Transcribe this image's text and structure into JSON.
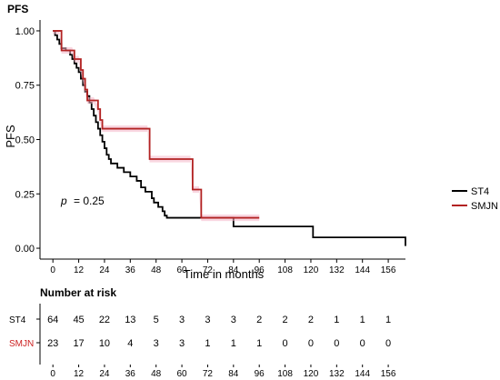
{
  "chart_data": {
    "type": "line",
    "subtype": "kaplan-meier",
    "title": "PFS",
    "xlabel": "Time in months",
    "ylabel": "PFS",
    "xlim": [
      -6,
      164
    ],
    "ylim": [
      -0.05,
      1.05
    ],
    "xticks": [
      0,
      12,
      24,
      36,
      48,
      60,
      72,
      84,
      96,
      108,
      120,
      132,
      144,
      156
    ],
    "yticks": [
      "0.00",
      "0.25",
      "0.50",
      "0.75",
      "1.00"
    ],
    "annotation": {
      "p_symbol": "p",
      "p_value": "= 0.25"
    },
    "legend_position": "right",
    "grid": false,
    "series": [
      {
        "name": "ST4",
        "color": "#000000",
        "points": [
          [
            0,
            1.0
          ],
          [
            1,
            0.98
          ],
          [
            2,
            0.96
          ],
          [
            3,
            0.94
          ],
          [
            4,
            0.92
          ],
          [
            6,
            0.91
          ],
          [
            8,
            0.89
          ],
          [
            9,
            0.87
          ],
          [
            10,
            0.85
          ],
          [
            11,
            0.83
          ],
          [
            12,
            0.81
          ],
          [
            13,
            0.78
          ],
          [
            14,
            0.75
          ],
          [
            15,
            0.72
          ],
          [
            16,
            0.7
          ],
          [
            17,
            0.67
          ],
          [
            18,
            0.64
          ],
          [
            19,
            0.61
          ],
          [
            20,
            0.58
          ],
          [
            21,
            0.55
          ],
          [
            22,
            0.52
          ],
          [
            23,
            0.49
          ],
          [
            24,
            0.46
          ],
          [
            25,
            0.43
          ],
          [
            26,
            0.41
          ],
          [
            27,
            0.39
          ],
          [
            30,
            0.37
          ],
          [
            33,
            0.35
          ],
          [
            36,
            0.33
          ],
          [
            39,
            0.31
          ],
          [
            41,
            0.28
          ],
          [
            43,
            0.26
          ],
          [
            46,
            0.23
          ],
          [
            47,
            0.21
          ],
          [
            49,
            0.19
          ],
          [
            51,
            0.17
          ],
          [
            52,
            0.15
          ],
          [
            53,
            0.14
          ],
          [
            70,
            0.14
          ],
          [
            84,
            0.1
          ],
          [
            120,
            0.1
          ],
          [
            121,
            0.05
          ],
          [
            163,
            0.05
          ],
          [
            164,
            0.01
          ]
        ],
        "band": false
      },
      {
        "name": "SMJN",
        "color": "#b22222",
        "points": [
          [
            0,
            1.0
          ],
          [
            3,
            1.0
          ],
          [
            4,
            0.91
          ],
          [
            9,
            0.91
          ],
          [
            10,
            0.87
          ],
          [
            12,
            0.87
          ],
          [
            13,
            0.82
          ],
          [
            14,
            0.78
          ],
          [
            15,
            0.73
          ],
          [
            16,
            0.68
          ],
          [
            19,
            0.68
          ],
          [
            21,
            0.64
          ],
          [
            22,
            0.59
          ],
          [
            23,
            0.55
          ],
          [
            44,
            0.55
          ],
          [
            45,
            0.41
          ],
          [
            64,
            0.41
          ],
          [
            65,
            0.27
          ],
          [
            68,
            0.27
          ],
          [
            69,
            0.14
          ],
          [
            96,
            0.14
          ]
        ],
        "band": true
      }
    ]
  },
  "risk_table": {
    "title": "Number at risk",
    "rows": [
      {
        "label": "ST4",
        "color": "#000000",
        "values": [
          "64",
          "45",
          "22",
          "13",
          "5",
          "3",
          "3",
          "3",
          "2",
          "2",
          "2",
          "1",
          "1",
          "1"
        ]
      },
      {
        "label": "SMJN",
        "color": "#cc2222",
        "values": [
          "23",
          "17",
          "10",
          "4",
          "3",
          "3",
          "1",
          "1",
          "1",
          "0",
          "0",
          "0",
          "0",
          "0"
        ]
      }
    ],
    "xticks": [
      "0",
      "12",
      "24",
      "36",
      "48",
      "60",
      "72",
      "84",
      "96",
      "108",
      "120",
      "132",
      "144",
      "156"
    ]
  }
}
